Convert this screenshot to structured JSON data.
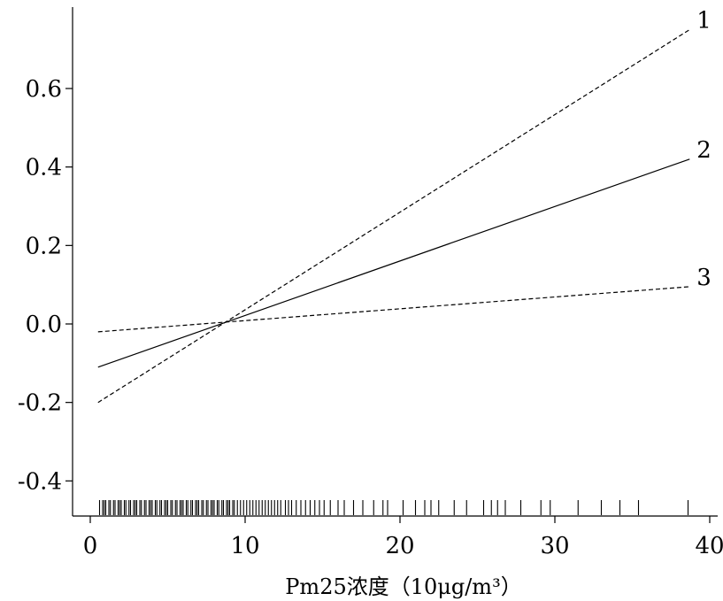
{
  "chart_data": {
    "type": "line",
    "title": "",
    "xlabel": "Pm25浓度（10μg/m³）",
    "ylabel": "",
    "xlim": [
      -1,
      40
    ],
    "ylim": [
      -0.5,
      0.81
    ],
    "x_ticks": [
      "0",
      "10",
      "20",
      "30",
      "40"
    ],
    "y_ticks": [
      "-0.4",
      "-0.2",
      "0.0",
      "0.2",
      "0.4",
      "0.6"
    ],
    "series": [
      {
        "name": "1",
        "style": "dashed",
        "x": [
          0.5,
          38.7
        ],
        "y": [
          -0.2,
          0.75
        ]
      },
      {
        "name": "2",
        "style": "solid",
        "x": [
          0.5,
          38.7
        ],
        "y": [
          -0.11,
          0.42
        ]
      },
      {
        "name": "3",
        "style": "dashed",
        "x": [
          0.5,
          38.7
        ],
        "y": [
          -0.02,
          0.095
        ]
      }
    ],
    "rug": [
      0.6,
      0.8,
      0.9,
      1.0,
      1.2,
      1.3,
      1.5,
      1.6,
      1.8,
      1.9,
      2.0,
      2.2,
      2.3,
      2.5,
      2.6,
      2.8,
      2.9,
      3.0,
      3.2,
      3.3,
      3.5,
      3.6,
      3.8,
      3.9,
      4.0,
      4.2,
      4.3,
      4.5,
      4.6,
      4.8,
      4.9,
      5.0,
      5.2,
      5.3,
      5.5,
      5.6,
      5.8,
      5.9,
      6.0,
      6.2,
      6.3,
      6.5,
      6.6,
      6.8,
      6.9,
      7.0,
      7.2,
      7.3,
      7.5,
      7.6,
      7.8,
      7.9,
      8.0,
      8.2,
      8.3,
      8.5,
      8.6,
      8.8,
      8.9,
      9.0,
      9.2,
      9.3,
      9.5,
      9.7,
      9.9,
      10.1,
      10.3,
      10.5,
      10.7,
      10.9,
      11.1,
      11.3,
      11.5,
      11.7,
      11.9,
      12.1,
      12.3,
      12.6,
      12.8,
      13.0,
      13.3,
      13.6,
      13.9,
      14.2,
      14.5,
      14.8,
      15.1,
      15.5,
      16.0,
      16.4,
      17.0,
      17.6,
      18.3,
      18.9,
      19.2,
      20.2,
      21.0,
      21.6,
      22.0,
      22.5,
      23.5,
      24.3,
      25.4,
      25.9,
      26.3,
      26.8,
      27.8,
      29.1,
      29.7,
      31.5,
      33.0,
      34.2,
      35.4,
      38.6
    ]
  }
}
